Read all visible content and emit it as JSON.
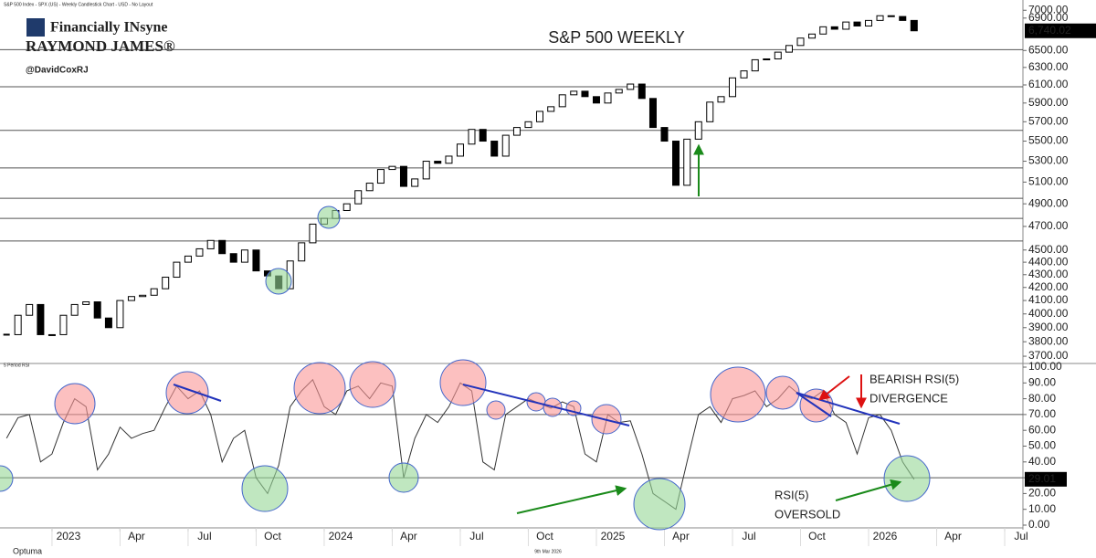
{
  "header": {
    "source": "S&P 500 Index - SPX (US) - Weekly Candlestick Chart - USD - No Layout",
    "brand": "Financially INsyne",
    "company": "RAYMOND JAMES®",
    "handle": "@DavidCoxRJ"
  },
  "footer": {
    "logo": "Optuma",
    "date": "9th Mar 2026"
  },
  "chart_data": [
    {
      "type": "candlestick",
      "title": "S&P 500 WEEKLY",
      "yscale": "log",
      "color": "#000000",
      "x": [
        2022.833,
        2022.875,
        2022.917,
        2022.958,
        2023.0,
        2023.042,
        2023.083,
        2023.125,
        2023.167,
        2023.208,
        2023.25,
        2023.292,
        2023.333,
        2023.375,
        2023.417,
        2023.458,
        2023.5,
        2023.542,
        2023.583,
        2023.625,
        2023.667,
        2023.708,
        2023.75,
        2023.792,
        2023.833,
        2023.875,
        2023.917,
        2023.958,
        2024.0,
        2024.042,
        2024.083,
        2024.125,
        2024.167,
        2024.208,
        2024.25,
        2024.292,
        2024.333,
        2024.375,
        2024.417,
        2024.458,
        2024.5,
        2024.542,
        2024.583,
        2024.625,
        2024.667,
        2024.708,
        2024.75,
        2024.792,
        2024.833,
        2024.875,
        2024.917,
        2024.958,
        2025.0,
        2025.042,
        2025.083,
        2025.125,
        2025.167,
        2025.208,
        2025.25,
        2025.292,
        2025.333,
        2025.375,
        2025.417,
        2025.458,
        2025.5,
        2025.542,
        2025.583,
        2025.625,
        2025.667,
        2025.708,
        2025.75,
        2025.792,
        2025.833,
        2025.875,
        2025.917,
        2025.958,
        2026.0,
        2026.042,
        2026.083,
        2026.125,
        2026.167
      ],
      "values": [
        3850,
        3990,
        4070,
        3850,
        3850,
        3990,
        4070,
        4090,
        3970,
        3900,
        4100,
        4130,
        4140,
        4190,
        4280,
        4400,
        4450,
        4510,
        4580,
        4470,
        4400,
        4500,
        4330,
        4290,
        4190,
        4410,
        4560,
        4720,
        4770,
        4840,
        4900,
        5020,
        5090,
        5220,
        5250,
        5060,
        5130,
        5300,
        5280,
        5350,
        5470,
        5620,
        5500,
        5350,
        5560,
        5640,
        5700,
        5810,
        5860,
        5990,
        6030,
        5970,
        5900,
        6010,
        6050,
        6110,
        5950,
        5640,
        5500,
        5070,
        5520,
        5700,
        5910,
        5970,
        6180,
        6260,
        6390,
        6400,
        6480,
        6560,
        6650,
        6700,
        6790,
        6760,
        6850,
        6800,
        6870,
        6930,
        6920,
        6870,
        6740.02
      ],
      "last_price": {
        "value": 6740.02,
        "label": "6,740.02"
      },
      "levels": [
        6510,
        6080,
        5610,
        5235,
        4950,
        4770,
        4575
      ],
      "xlim": [
        2022.809,
        2026.567
      ],
      "ylim": [
        3657,
        7074
      ],
      "yticks": [
        {
          "value": 7000,
          "label": "7000.00"
        },
        {
          "value": 6900,
          "label": "6900.00"
        },
        {
          "value": 6500,
          "label": "6500.00"
        },
        {
          "value": 6300,
          "label": "6300.00"
        },
        {
          "value": 6100,
          "label": "6100.00"
        },
        {
          "value": 5900,
          "label": "5900.00"
        },
        {
          "value": 5700,
          "label": "5700.00"
        },
        {
          "value": 5500,
          "label": "5500.00"
        },
        {
          "value": 5300,
          "label": "5300.00"
        },
        {
          "value": 5100,
          "label": "5100.00"
        },
        {
          "value": 4900,
          "label": "4900.00"
        },
        {
          "value": 4700,
          "label": "4700.00"
        },
        {
          "value": 4500,
          "label": "4500.00"
        },
        {
          "value": 4400,
          "label": "4400.00"
        },
        {
          "value": 4300,
          "label": "4300.00"
        },
        {
          "value": 4200,
          "label": "4200.00"
        },
        {
          "value": 4100,
          "label": "4100.00"
        },
        {
          "value": 4000,
          "label": "4000.00"
        },
        {
          "value": 3900,
          "label": "3900.00"
        },
        {
          "value": 3800,
          "label": "3800.00"
        },
        {
          "value": 3700,
          "label": "3700.00"
        }
      ]
    },
    {
      "type": "line",
      "title": "5 Period RSI",
      "color": "#333333",
      "x": [
        2022.833,
        2022.875,
        2022.917,
        2022.958,
        2023.0,
        2023.042,
        2023.083,
        2023.125,
        2023.167,
        2023.208,
        2023.25,
        2023.292,
        2023.333,
        2023.375,
        2023.417,
        2023.458,
        2023.5,
        2023.542,
        2023.583,
        2023.625,
        2023.667,
        2023.708,
        2023.75,
        2023.792,
        2023.833,
        2023.875,
        2023.917,
        2023.958,
        2024.0,
        2024.042,
        2024.083,
        2024.125,
        2024.167,
        2024.208,
        2024.25,
        2024.292,
        2024.333,
        2024.375,
        2024.417,
        2024.458,
        2024.5,
        2024.542,
        2024.583,
        2024.625,
        2024.667,
        2024.708,
        2024.75,
        2024.792,
        2024.833,
        2024.875,
        2024.917,
        2024.958,
        2025.0,
        2025.042,
        2025.083,
        2025.125,
        2025.167,
        2025.208,
        2025.25,
        2025.292,
        2025.333,
        2025.375,
        2025.417,
        2025.458,
        2025.5,
        2025.542,
        2025.583,
        2025.625,
        2025.667,
        2025.708,
        2025.75,
        2025.792,
        2025.833,
        2025.875,
        2025.917,
        2025.958,
        2026.0,
        2026.042,
        2026.083,
        2026.125,
        2026.167
      ],
      "values": [
        55,
        68,
        70,
        40,
        45,
        65,
        80,
        75,
        35,
        45,
        62,
        55,
        58,
        60,
        75,
        88,
        80,
        85,
        70,
        40,
        55,
        60,
        30,
        20,
        38,
        75,
        85,
        92,
        75,
        70,
        85,
        88,
        80,
        90,
        88,
        30,
        55,
        70,
        65,
        75,
        90,
        85,
        40,
        35,
        70,
        75,
        80,
        77,
        74,
        78,
        75,
        45,
        40,
        70,
        65,
        66,
        45,
        20,
        15,
        10,
        40,
        70,
        75,
        65,
        80,
        82,
        85,
        75,
        80,
        88,
        82,
        80,
        85,
        70,
        65,
        45,
        68,
        70,
        60,
        40,
        29.01
      ],
      "last_value": 29.01,
      "levels": [
        70,
        30
      ],
      "annotations": [
        "BEARISH RSI(5)",
        "DIVERGENCE",
        "RSI(5)",
        "OVERSOLD"
      ],
      "xlim": [
        2022.809,
        2026.567
      ],
      "ylim": [
        0,
        100
      ],
      "yticks": [
        {
          "value": 100,
          "label": "100.00"
        },
        {
          "value": 90,
          "label": "90.00"
        },
        {
          "value": 80,
          "label": "80.00"
        },
        {
          "value": 70,
          "label": "70.00"
        },
        {
          "value": 60,
          "label": "60.00"
        },
        {
          "value": 50,
          "label": "50.00"
        },
        {
          "value": 40,
          "label": "40.00"
        },
        {
          "value": 30,
          "label": "30.00"
        },
        {
          "value": 20,
          "label": "20.00"
        },
        {
          "value": 10,
          "label": "10.00"
        },
        {
          "value": 0,
          "label": "0.00"
        }
      ],
      "xticks": [
        {
          "value": 2023,
          "label": "2023"
        },
        {
          "value": 2023.25,
          "label": "Apr"
        },
        {
          "value": 2023.5,
          "label": "Jul"
        },
        {
          "value": 2023.75,
          "label": "Oct"
        },
        {
          "value": 2024,
          "label": "2024"
        },
        {
          "value": 2024.25,
          "label": "Apr"
        },
        {
          "value": 2024.5,
          "label": "Jul"
        },
        {
          "value": 2024.75,
          "label": "Oct"
        },
        {
          "value": 2025,
          "label": "2025"
        },
        {
          "value": 2025.25,
          "label": "Apr"
        },
        {
          "value": 2025.5,
          "label": "Jul"
        },
        {
          "value": 2025.75,
          "label": "Oct"
        },
        {
          "value": 2026,
          "label": "2026"
        },
        {
          "value": 2026.25,
          "label": "Apr"
        },
        {
          "value": 2026.5,
          "label": "Jul"
        }
      ]
    }
  ]
}
